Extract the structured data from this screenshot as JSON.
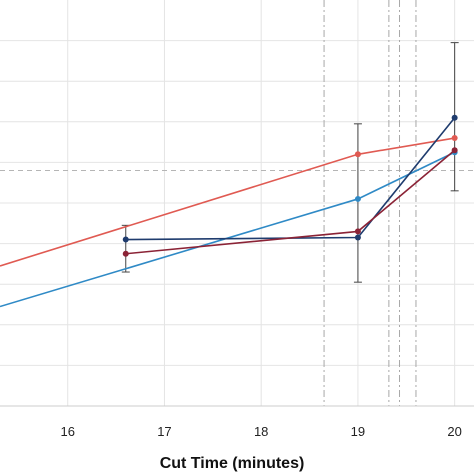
{
  "chart_data": {
    "type": "line",
    "xlabel": "Cut Time (minutes)",
    "xlim": [
      15.3,
      20.2
    ],
    "ylim": [
      0,
      10
    ],
    "x_ticks": [
      "16",
      "17",
      "18",
      "19",
      "20"
    ],
    "x_tick_values": [
      16,
      17,
      18,
      19,
      20
    ],
    "y_gridlines": [
      1,
      2,
      3,
      4,
      5,
      6,
      7,
      8,
      9
    ],
    "y_reference": 5.8,
    "vertical_markers": [
      18.65,
      19.32,
      19.43,
      19.6
    ],
    "grid": true,
    "legend": "none",
    "series": [
      {
        "kind": "line",
        "color": "#e05a52",
        "x": [
          15.3,
          19.0,
          20.0
        ],
        "y": [
          3.45,
          6.2,
          6.6
        ]
      },
      {
        "kind": "line",
        "color": "#2f8ac6",
        "x": [
          15.3,
          19.0,
          20.0
        ],
        "y": [
          2.45,
          5.1,
          6.25
        ]
      },
      {
        "kind": "line",
        "color": "#1f3c6e",
        "x": [
          16.6,
          19.0,
          20.0
        ],
        "y": [
          4.1,
          4.15,
          7.1
        ]
      },
      {
        "kind": "line",
        "color": "#8b2336",
        "x": [
          16.6,
          19.0,
          20.0
        ],
        "y": [
          3.75,
          4.3,
          6.3
        ]
      }
    ],
    "error_bars": [
      {
        "x": 16.6,
        "low": 3.3,
        "high": 4.45
      },
      {
        "x": 19.0,
        "low": 3.05,
        "high": 6.95
      },
      {
        "x": 20.0,
        "low": 5.3,
        "high": 8.95
      }
    ]
  }
}
